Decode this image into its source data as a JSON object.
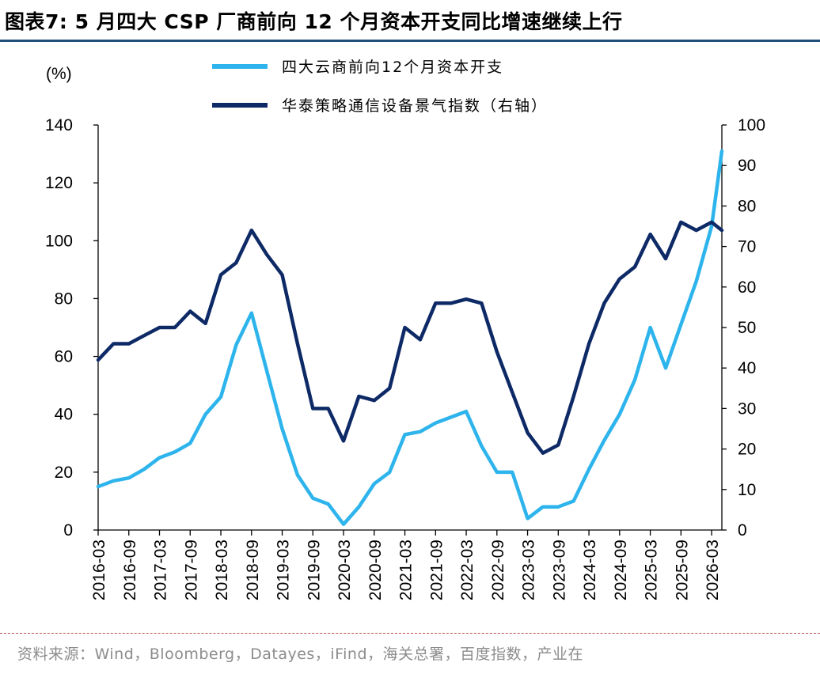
{
  "title": "图表7:  5 月四大 CSP 厂商前向 12 个月资本开支同比增速继续上行",
  "source": "资料来源：Wind，Bloomberg，Datayes，iFind，海关总署，百度指数，产业在",
  "colors": {
    "series1": "#2eb4ec",
    "series2": "#0e2a66",
    "title_rule": "#1f4e79"
  },
  "chart_data": {
    "type": "line",
    "y_left_unit": "(%)",
    "y_left_range": [
      0,
      140
    ],
    "y_left_ticks": [
      "0",
      "20",
      "40",
      "60",
      "80",
      "100",
      "120",
      "140"
    ],
    "y_right_range": [
      0,
      100
    ],
    "y_right_ticks": [
      "0",
      "10",
      "20",
      "30",
      "40",
      "50",
      "60",
      "70",
      "80",
      "90",
      "100"
    ],
    "x_range": [
      "2016-03",
      "2026-05"
    ],
    "x_ticks": [
      "2016-03",
      "2016-09",
      "2017-03",
      "2017-09",
      "2018-03",
      "2018-09",
      "2019-03",
      "2019-09",
      "2020-03",
      "2020-09",
      "2021-03",
      "2021-09",
      "2022-03",
      "2022-09",
      "2023-03",
      "2023-09",
      "2024-03",
      "2024-09",
      "2025-03",
      "2025-09",
      "2026-03"
    ],
    "series": [
      {
        "name": "四大云商前向12个月资本开支",
        "axis": "left",
        "x": [
          "2016-03",
          "2016-06",
          "2016-09",
          "2016-12",
          "2017-03",
          "2017-06",
          "2017-09",
          "2017-12",
          "2018-03",
          "2018-06",
          "2018-09",
          "2018-12",
          "2019-03",
          "2019-06",
          "2019-09",
          "2019-12",
          "2020-03",
          "2020-06",
          "2020-09",
          "2020-12",
          "2021-03",
          "2021-06",
          "2021-09",
          "2021-12",
          "2022-03",
          "2022-06",
          "2022-09",
          "2022-12",
          "2023-03",
          "2023-06",
          "2023-09",
          "2023-12",
          "2024-03",
          "2024-06",
          "2024-09",
          "2024-12",
          "2025-03",
          "2025-06",
          "2025-09",
          "2025-12",
          "2026-03",
          "2026-05"
        ],
        "values": [
          15,
          17,
          18,
          21,
          25,
          27,
          30,
          40,
          46,
          64,
          75,
          55,
          35,
          19,
          11,
          9,
          2,
          8,
          16,
          20,
          33,
          34,
          37,
          39,
          41,
          29,
          20,
          20,
          4,
          8,
          8,
          10,
          21,
          31,
          40,
          52,
          70,
          56,
          71,
          86,
          105,
          131
        ]
      },
      {
        "name": "华泰策略通信设备景气指数（右轴）",
        "axis": "right",
        "x": [
          "2016-03",
          "2016-06",
          "2016-09",
          "2016-12",
          "2017-03",
          "2017-06",
          "2017-09",
          "2017-12",
          "2018-03",
          "2018-06",
          "2018-09",
          "2018-12",
          "2019-03",
          "2019-06",
          "2019-09",
          "2019-12",
          "2020-03",
          "2020-06",
          "2020-09",
          "2020-12",
          "2021-03",
          "2021-06",
          "2021-09",
          "2021-12",
          "2022-03",
          "2022-06",
          "2022-09",
          "2022-12",
          "2023-03",
          "2023-06",
          "2023-09",
          "2023-12",
          "2024-03",
          "2024-06",
          "2024-09",
          "2024-12",
          "2025-03",
          "2025-06",
          "2025-09",
          "2025-12",
          "2026-03",
          "2026-05"
        ],
        "values": [
          42,
          46,
          46,
          48,
          50,
          50,
          54,
          51,
          63,
          66,
          74,
          68,
          63,
          46,
          30,
          30,
          22,
          33,
          32,
          35,
          50,
          47,
          56,
          56,
          57,
          56,
          44,
          34,
          24,
          19,
          21,
          33,
          46,
          56,
          62,
          65,
          73,
          67,
          76,
          74,
          76,
          74
        ]
      }
    ]
  }
}
